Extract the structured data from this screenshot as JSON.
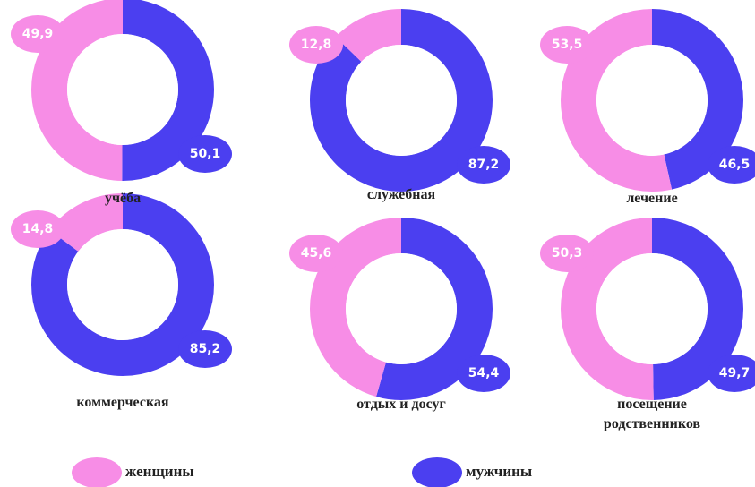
{
  "chart_data": [
    {
      "type": "donut",
      "title": "учёба",
      "values": [
        49.9,
        50.1
      ],
      "value_labels": [
        "49,9",
        "50,1"
      ],
      "colors": [
        "#f78de6",
        "#4b3ff0"
      ]
    },
    {
      "type": "donut",
      "title": "служебная",
      "values": [
        12.8,
        87.2
      ],
      "value_labels": [
        "12,8",
        "87,2"
      ],
      "colors": [
        "#f78de6",
        "#4b3ff0"
      ]
    },
    {
      "type": "donut",
      "title": "лечение",
      "values": [
        53.5,
        46.5
      ],
      "value_labels": [
        "53,5",
        "46,5"
      ],
      "colors": [
        "#f78de6",
        "#4b3ff0"
      ]
    },
    {
      "type": "donut",
      "title": "коммерческая",
      "values": [
        14.8,
        85.2
      ],
      "value_labels": [
        "14,8",
        "85,2"
      ],
      "colors": [
        "#f78de6",
        "#4b3ff0"
      ]
    },
    {
      "type": "donut",
      "title": "отдых и досуг",
      "values": [
        45.6,
        54.4
      ],
      "value_labels": [
        "45,6",
        "54,4"
      ],
      "colors": [
        "#f78de6",
        "#4b3ff0"
      ]
    },
    {
      "type": "donut",
      "title": "посещение родственников",
      "values": [
        50.3,
        49.7
      ],
      "value_labels": [
        "50,3",
        "49,7"
      ],
      "colors": [
        "#f78de6",
        "#4b3ff0"
      ]
    }
  ],
  "legend": {
    "categories": [
      "женщины",
      "мужчины"
    ],
    "colors": [
      "#f78de6",
      "#4b3ff0"
    ]
  }
}
